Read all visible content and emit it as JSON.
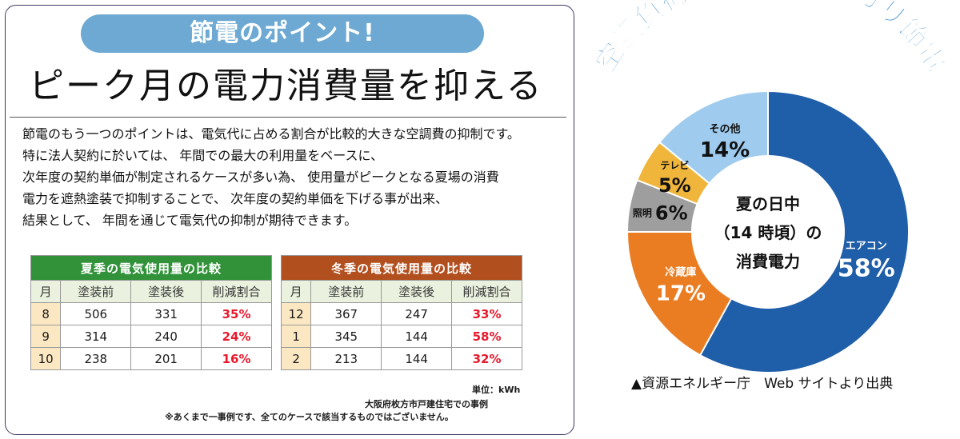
{
  "badge": "節電のポイント!",
  "headline": "ピーク月の電力消費量を抑える",
  "intro_lines": [
    "節電のもう一つのポイントは、電気代に占める割合が比較的大きな空調費の抑制です。",
    "特に法人契約に於いては、 年間での最大の利用量をベースに、",
    "次年度の契約単価が制定されるケースが多い為、 使用量がピークとなる夏場の消費",
    "電力を遮熱塗装で抑制することで、 次年度の契約単価を下げる事が出来、",
    "結果として、 年間を通じて電気代の抑制が期待できます。"
  ],
  "summer_table": {
    "title": "夏季の電気使用量の比較",
    "headers": [
      "月",
      "塗装前",
      "塗装後",
      "削減割合"
    ],
    "rows": [
      [
        "8",
        "506",
        "331",
        "35%"
      ],
      [
        "9",
        "314",
        "240",
        "24%"
      ],
      [
        "10",
        "238",
        "201",
        "16%"
      ]
    ]
  },
  "winter_table": {
    "title": "冬季の電気使用量の比較",
    "headers": [
      "月",
      "塗装前",
      "塗装後",
      "削減割合"
    ],
    "rows": [
      [
        "12",
        "367",
        "247",
        "33%"
      ],
      [
        "1",
        "345",
        "144",
        "58%"
      ],
      [
        "2",
        "213",
        "144",
        "32%"
      ]
    ]
  },
  "unit_note": "単位：kWh",
  "case_note": "大阪府枚方市戸建住宅での事例",
  "disclaimer": "※あくまで一事例です、全てのケースで該当するものではございません。",
  "arc_title": "空調負荷を抑えてシッカリ節電",
  "source": "▲資源エネルギー庁　Web サイトより出典",
  "colors": {
    "badge": "#6da9d3",
    "summer_header": "#31923a",
    "winter_header": "#b24f1f",
    "highlight": "#e8192c",
    "arc_title": "#2e84c6"
  },
  "chart_data": {
    "type": "pie",
    "title": "",
    "center_label": [
      "夏の日中",
      "（14 時頃）の",
      "消費電力"
    ],
    "slices": [
      {
        "label": "エアコン",
        "value": 58,
        "display": "58%",
        "color": "#1f5ea8"
      },
      {
        "label": "冷蔵庫",
        "value": 17,
        "display": "17%",
        "color": "#ea7d22"
      },
      {
        "label": "照明",
        "value": 6,
        "display": "6%",
        "color": "#9e9e9e"
      },
      {
        "label": "テレビ",
        "value": 5,
        "display": "5%",
        "color": "#f0b53b"
      },
      {
        "label": "その他",
        "value": 14,
        "display": "14%",
        "color": "#9ecbee"
      }
    ],
    "donut": true
  }
}
